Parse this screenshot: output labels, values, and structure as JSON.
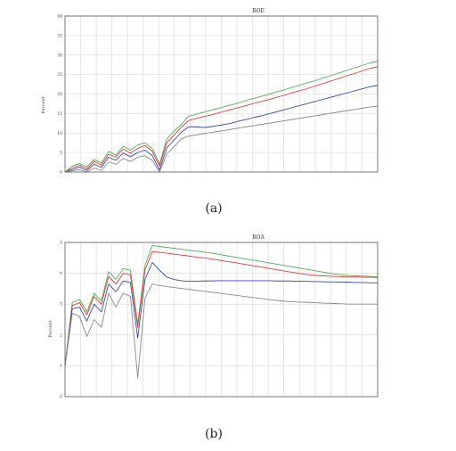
{
  "colors": {
    "green": "#4caf50",
    "red": "#e53935",
    "blue": "#3949ab",
    "gray": "#8a8a8a"
  },
  "chart_data": [
    {
      "type": "line",
      "title": "ROE",
      "ylabel": "Percent",
      "caption": "(a)",
      "ylim": [
        0,
        40
      ],
      "yticks": [
        "0",
        "5",
        "10",
        "15",
        "20",
        "25",
        "30",
        "35",
        "40"
      ],
      "x": [
        1,
        2,
        3,
        4,
        5,
        6,
        7,
        8,
        9,
        10,
        11,
        12,
        13,
        14,
        15,
        16,
        17,
        18,
        19,
        20,
        21,
        22,
        23,
        24,
        25,
        26,
        27,
        28,
        29,
        30,
        31,
        32,
        33,
        34,
        35,
        36,
        37,
        38,
        39,
        40,
        41,
        42,
        43,
        44
      ],
      "grid": true,
      "series": [
        {
          "color": "green",
          "values": [
            0,
            1.5,
            2.2,
            1.3,
            3.2,
            2.3,
            5.3,
            4.3,
            6.6,
            5.6,
            6.9,
            7.5,
            6,
            2,
            8.5,
            10.5,
            12.2,
            14.3,
            14.8,
            15.3,
            15.8,
            16.3,
            16.8,
            17.3,
            17.8,
            18.4,
            18.9,
            19.4,
            19.9,
            20.5,
            21,
            21.6,
            22.1,
            22.7,
            23.2,
            23.8,
            24.4,
            25,
            25.6,
            26.2,
            26.8,
            27.4,
            28,
            28.4
          ]
        },
        {
          "color": "red",
          "values": [
            0,
            1,
            1.8,
            0.8,
            2.7,
            1.8,
            4.6,
            3.8,
            5.9,
            4.8,
            6.1,
            6.8,
            5.3,
            1.5,
            7.5,
            9.5,
            11.5,
            13.2,
            13.7,
            14.2,
            14.6,
            15.1,
            15.6,
            16.1,
            16.6,
            17.1,
            17.6,
            18.1,
            18.6,
            19.1,
            19.6,
            20.2,
            20.7,
            21.2,
            21.8,
            22.4,
            23,
            23.6,
            24.2,
            24.8,
            25.4,
            26,
            26.6,
            27
          ]
        },
        {
          "color": "blue",
          "values": [
            0,
            0.6,
            1.3,
            0.4,
            2,
            1.2,
            3.8,
            3,
            4.9,
            3.9,
            5,
            5.6,
            4.2,
            0.5,
            6.2,
            8.2,
            10.2,
            11.6,
            11.6,
            11.4,
            11.6,
            11.9,
            12.2,
            12.6,
            13.1,
            13.5,
            14,
            14.4,
            14.9,
            15.4,
            15.9,
            16.4,
            16.9,
            17.4,
            17.9,
            18.4,
            18.9,
            19.4,
            19.9,
            20.4,
            20.9,
            21.4,
            21.9,
            22.2
          ]
        },
        {
          "color": "gray",
          "values": [
            0,
            0.3,
            0.6,
            0,
            1,
            0.4,
            2.6,
            2,
            3.5,
            2.7,
            3.8,
            4.2,
            3,
            0,
            4.6,
            6.5,
            8.5,
            9.2,
            9.5,
            9.8,
            10.1,
            10.4,
            10.7,
            11,
            11.3,
            11.6,
            11.9,
            12.2,
            12.5,
            12.8,
            13.1,
            13.4,
            13.7,
            14,
            14.3,
            14.6,
            14.9,
            15.2,
            15.5,
            15.8,
            16.1,
            16.4,
            16.7,
            16.9
          ]
        }
      ]
    },
    {
      "type": "line",
      "title": "ROA",
      "ylabel": "Percent",
      "caption": "(b)",
      "ylim": [
        0,
        5
      ],
      "yticks": [
        "0",
        "1",
        "2",
        "3",
        "4",
        "5"
      ],
      "x": [
        1,
        2,
        3,
        4,
        5,
        6,
        7,
        8,
        9,
        10,
        11,
        12,
        13,
        14,
        15,
        16,
        17,
        18,
        19,
        20,
        21,
        22,
        23,
        24,
        25,
        26,
        27,
        28,
        29,
        30,
        31,
        32,
        33,
        34,
        35,
        36,
        37,
        38,
        39,
        40,
        41,
        42,
        43,
        44
      ],
      "grid": true,
      "series": [
        {
          "color": "green",
          "values": [
            1,
            3.05,
            3.15,
            2.75,
            3.35,
            3.1,
            4.05,
            3.8,
            4.15,
            4.1,
            2.35,
            4.25,
            4.9,
            4.87,
            4.84,
            4.81,
            4.78,
            4.75,
            4.72,
            4.69,
            4.66,
            4.62,
            4.58,
            4.54,
            4.5,
            4.46,
            4.42,
            4.38,
            4.34,
            4.3,
            4.26,
            4.22,
            4.18,
            4.14,
            4.1,
            4.06,
            4.02,
            3.98,
            3.95,
            3.93,
            3.92,
            3.91,
            3.9,
            3.89
          ]
        },
        {
          "color": "red",
          "values": [
            1,
            2.95,
            3.05,
            2.65,
            3.25,
            3.0,
            3.9,
            3.65,
            4.0,
            3.95,
            2.25,
            4.1,
            4.7,
            4.68,
            4.65,
            4.62,
            4.59,
            4.56,
            4.53,
            4.5,
            4.47,
            4.43,
            4.39,
            4.36,
            4.32,
            4.28,
            4.24,
            4.2,
            4.16,
            4.12,
            4.08,
            4.04,
            4.0,
            3.97,
            3.94,
            3.92,
            3.91,
            3.9,
            3.89,
            3.88,
            3.88,
            3.87,
            3.87,
            3.86
          ]
        },
        {
          "color": "blue",
          "values": [
            1,
            2.85,
            2.9,
            2.45,
            3.0,
            2.75,
            3.65,
            3.4,
            3.75,
            3.7,
            1.9,
            3.8,
            4.35,
            4.1,
            3.88,
            3.8,
            3.76,
            3.74,
            3.74,
            3.75,
            3.75,
            3.76,
            3.76,
            3.76,
            3.76,
            3.76,
            3.76,
            3.76,
            3.76,
            3.75,
            3.75,
            3.75,
            3.74,
            3.74,
            3.73,
            3.73,
            3.72,
            3.72,
            3.71,
            3.71,
            3.7,
            3.7,
            3.69,
            3.69
          ]
        },
        {
          "color": "gray",
          "values": [
            1,
            2.7,
            2.6,
            1.95,
            2.5,
            2.25,
            3.35,
            2.9,
            3.35,
            3.25,
            0.6,
            3.2,
            3.65,
            3.6,
            3.57,
            3.54,
            3.51,
            3.48,
            3.45,
            3.42,
            3.39,
            3.36,
            3.33,
            3.3,
            3.27,
            3.24,
            3.21,
            3.18,
            3.15,
            3.12,
            3.1,
            3.08,
            3.07,
            3.06,
            3.05,
            3.04,
            3.03,
            3.02,
            3.01,
            3.0,
            3.0,
            3.0,
            3.0,
            3.0
          ]
        }
      ]
    }
  ]
}
